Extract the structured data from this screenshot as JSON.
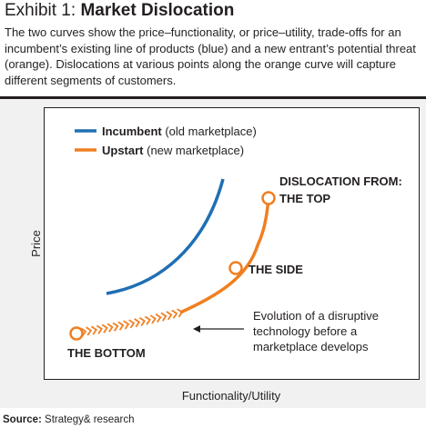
{
  "header": {
    "exhibit_label": "Exhibit 1: ",
    "title": "Market Dislocation",
    "description": "The two curves show the price–functionality, or price–utility, trade-offs for an incumbent’s existing line of products (blue) and a new entrant’s potential threat (orange). Dislocations at various points along the orange curve will capture different segments of customers."
  },
  "chart_data": {
    "type": "line",
    "xlabel": "Functionality/Utility",
    "ylabel": "Price",
    "grid": false,
    "axis_ticks": false,
    "legend_position": "top-left",
    "series": [
      {
        "name": "Incumbent",
        "name_suffix": " (old marketplace)",
        "color": "#1f6fb4",
        "style": "solid"
      },
      {
        "name": "Upstart",
        "name_suffix": " (new marketplace)",
        "color": "#f07f21",
        "style": "solid with chevron-dotted start"
      }
    ],
    "annotations": {
      "points_heading": "DISLOCATION FROM:",
      "points": [
        {
          "id": "top",
          "label": "THE TOP"
        },
        {
          "id": "side",
          "label": "THE SIDE"
        },
        {
          "id": "bottom",
          "label": "THE BOTTOM"
        }
      ],
      "callout": [
        "Evolution of a disruptive",
        "technology before a",
        "marketplace develops"
      ]
    }
  },
  "footer": {
    "source_label": "Source:",
    "source_text": " Strategy& research"
  }
}
